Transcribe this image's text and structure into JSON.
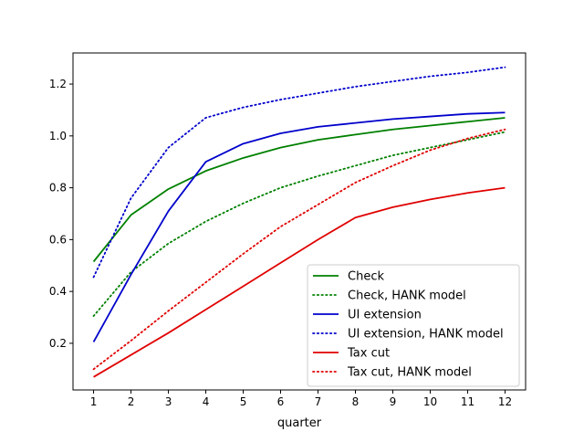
{
  "chart_data": {
    "type": "line",
    "title": "",
    "xlabel": "quarter",
    "ylabel": "",
    "x": [
      1,
      2,
      3,
      4,
      5,
      6,
      7,
      8,
      9,
      10,
      11,
      12
    ],
    "xlim": [
      0.45,
      12.55
    ],
    "ylim": [
      0.02,
      1.32
    ],
    "xticks": [
      1,
      2,
      3,
      4,
      5,
      6,
      7,
      8,
      9,
      10,
      11,
      12
    ],
    "yticks": [
      0.2,
      0.4,
      0.6,
      0.8,
      1.0,
      1.2
    ],
    "ytick_labels": [
      "0.2",
      "0.4",
      "0.6",
      "0.8",
      "1.0",
      "1.2"
    ],
    "grid": false,
    "legend_position": "lower-right",
    "series": [
      {
        "name": "Check",
        "color": "#008000",
        "dash": "solid",
        "values": [
          0.515,
          0.695,
          0.795,
          0.865,
          0.915,
          0.955,
          0.985,
          1.005,
          1.025,
          1.04,
          1.055,
          1.07
        ]
      },
      {
        "name": "Check, HANK model",
        "color": "#008000",
        "dash": "dotted",
        "values": [
          0.305,
          0.475,
          0.585,
          0.67,
          0.74,
          0.8,
          0.845,
          0.885,
          0.925,
          0.955,
          0.985,
          1.015
        ]
      },
      {
        "name": "UI extension",
        "color": "#0000cc",
        "dash": "solid",
        "values": [
          0.205,
          0.465,
          0.71,
          0.9,
          0.97,
          1.01,
          1.035,
          1.05,
          1.065,
          1.075,
          1.085,
          1.09
        ]
      },
      {
        "name": "UI extension, HANK model",
        "color": "#0000cc",
        "dash": "dotted",
        "values": [
          0.455,
          0.76,
          0.955,
          1.07,
          1.11,
          1.14,
          1.165,
          1.19,
          1.21,
          1.23,
          1.245,
          1.265
        ]
      },
      {
        "name": "Tax cut",
        "color": "#e00000",
        "dash": "solid",
        "values": [
          0.07,
          0.155,
          0.24,
          0.33,
          0.42,
          0.51,
          0.6,
          0.685,
          0.725,
          0.755,
          0.78,
          0.8
        ]
      },
      {
        "name": "Tax cut, HANK model",
        "color": "#e00000",
        "dash": "dotted",
        "values": [
          0.1,
          0.21,
          0.325,
          0.435,
          0.545,
          0.65,
          0.735,
          0.82,
          0.885,
          0.945,
          0.99,
          1.025
        ]
      }
    ]
  }
}
